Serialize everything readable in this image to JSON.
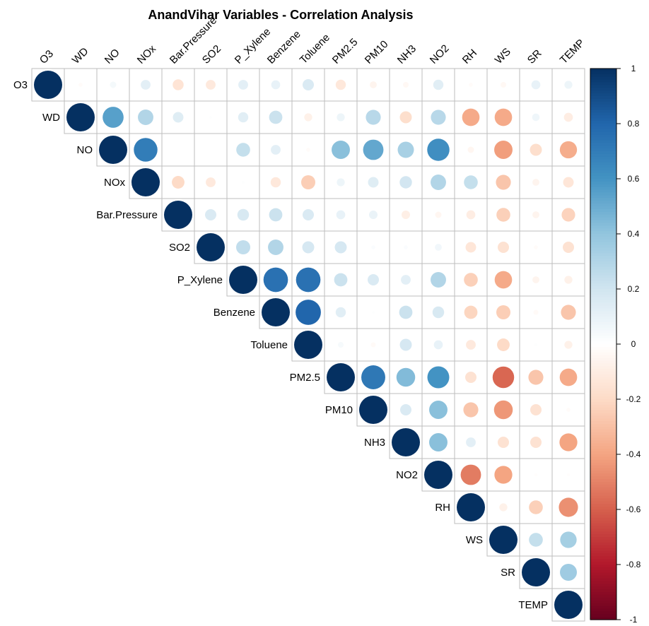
{
  "chart_data": {
    "type": "heatmap",
    "subtype": "corrplot-circle-upper",
    "title": "AnandVihar Variables - Correlation Analysis",
    "variables": [
      "O3",
      "WD",
      "NO",
      "NOx",
      "Bar.Pressure",
      "SO2",
      "P_Xylene",
      "Benzene",
      "Toluene",
      "PM2.5",
      "PM10",
      "NH3",
      "NO2",
      "RH",
      "WS",
      "SR",
      "TEMP"
    ],
    "matrix_upper": [
      [
        1,
        -0.02,
        0.05,
        0.12,
        -0.15,
        -0.12,
        0.12,
        0.1,
        0.16,
        -0.13,
        -0.06,
        -0.04,
        0.13,
        -0.02,
        -0.04,
        0.1,
        0.08
      ],
      [
        1,
        0.55,
        0.3,
        0.14,
        0.01,
        0.13,
        0.22,
        -0.08,
        0.08,
        0.28,
        -0.18,
        0.28,
        -0.38,
        -0.38,
        0.07,
        -0.1
      ],
      [
        1,
        0.7,
        0.0,
        0.0,
        0.24,
        0.12,
        -0.02,
        0.42,
        0.52,
        0.33,
        0.62,
        -0.05,
        -0.42,
        -0.18,
        -0.37
      ],
      [
        1,
        -0.2,
        -0.12,
        0.01,
        -0.13,
        -0.25,
        0.08,
        0.14,
        0.19,
        0.3,
        0.24,
        -0.28,
        -0.06,
        -0.14
      ],
      [
        1,
        0.16,
        0.17,
        0.22,
        0.16,
        0.1,
        0.09,
        -0.09,
        -0.05,
        -0.1,
        -0.24,
        -0.06,
        -0.23
      ],
      [
        1,
        0.25,
        0.3,
        0.18,
        0.18,
        0.02,
        0.02,
        0.06,
        -0.14,
        -0.16,
        -0.02,
        -0.16
      ],
      [
        1,
        0.75,
        0.75,
        0.22,
        0.16,
        0.12,
        0.3,
        -0.24,
        -0.38,
        -0.06,
        -0.08
      ],
      [
        1,
        0.8,
        0.13,
        0.01,
        0.22,
        0.17,
        -0.22,
        -0.25,
        -0.03,
        -0.28
      ],
      [
        1,
        0.04,
        -0.03,
        0.18,
        0.1,
        -0.12,
        -0.2,
        0.01,
        -0.08
      ],
      [
        1,
        0.72,
        0.44,
        0.6,
        -0.16,
        -0.58,
        -0.28,
        -0.38
      ],
      [
        1,
        0.16,
        0.42,
        -0.28,
        -0.44,
        -0.16,
        -0.02
      ],
      [
        1,
        0.42,
        0.12,
        -0.16,
        -0.16,
        -0.4
      ],
      [
        1,
        -0.52,
        -0.4,
        -0.01,
        -0.01
      ],
      [
        1,
        -0.08,
        -0.24,
        -0.46
      ],
      [
        1,
        0.24,
        0.34
      ],
      [
        1,
        0.36
      ],
      [
        1
      ]
    ],
    "colorbar": {
      "range": [
        -1,
        1
      ],
      "ticks": [
        "1",
        "0.8",
        "0.6",
        "0.4",
        "0.2",
        "0",
        "-0.2",
        "-0.4",
        "-0.6",
        "-0.8",
        "-1"
      ],
      "low_color": "#67001F",
      "mid_color": "#FFFFFF",
      "high_color": "#053061",
      "placement": "right"
    },
    "grid": true,
    "legend": "right"
  }
}
